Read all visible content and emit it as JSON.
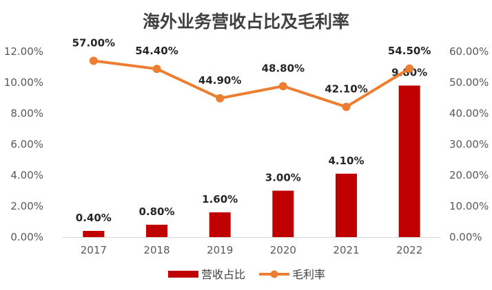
{
  "chart_data": {
    "type": "bar",
    "title": "海外业务营收占比及毛利率",
    "categories": [
      "2017",
      "2018",
      "2019",
      "2020",
      "2021",
      "2022"
    ],
    "series": [
      {
        "name": "营收占比",
        "type": "bar",
        "axis": "left",
        "values": [
          0.4,
          0.8,
          1.6,
          3.0,
          4.1,
          9.8
        ],
        "labels": [
          "0.40%",
          "0.80%",
          "1.60%",
          "3.00%",
          "4.10%",
          "9.80%"
        ],
        "color": "#C00000"
      },
      {
        "name": "毛利率",
        "type": "line",
        "axis": "right",
        "values": [
          57.0,
          54.4,
          44.9,
          48.8,
          42.1,
          54.5
        ],
        "labels": [
          "57.00%",
          "54.40%",
          "44.90%",
          "48.80%",
          "42.10%",
          "54.50%"
        ],
        "color": "#ED7D31"
      }
    ],
    "y_left": {
      "ylim": [
        0,
        12
      ],
      "ticks": [
        "0.00%",
        "2.00%",
        "4.00%",
        "6.00%",
        "8.00%",
        "10.00%",
        "12.00%"
      ]
    },
    "y_right": {
      "ylim": [
        0,
        60
      ],
      "ticks": [
        "0.00%",
        "10.00%",
        "20.00%",
        "30.00%",
        "40.00%",
        "50.00%",
        "60.00%"
      ]
    },
    "grid": false,
    "legend": "bottom"
  }
}
